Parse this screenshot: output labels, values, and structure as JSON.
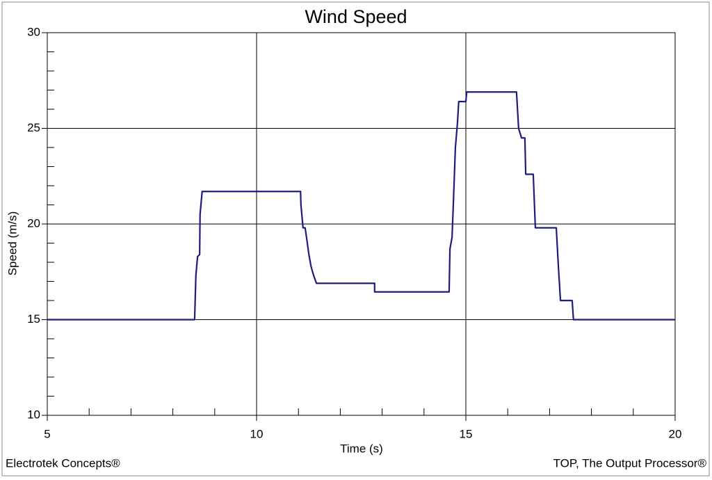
{
  "chart_data": {
    "type": "line",
    "title": "Wind Speed",
    "x_label": "Time (s)",
    "y_label": "Speed (m/s)",
    "footer_left": "Electrotek Concepts®",
    "footer_right": "TOP, The Output Processor®",
    "x": [
      5,
      8.52,
      8.55,
      8.59,
      8.64,
      8.65,
      8.7,
      11.05,
      11.06,
      11.11,
      11.16,
      11.2,
      11.25,
      11.3,
      11.35,
      11.43,
      12.82,
      12.82,
      14.6,
      14.62,
      14.67,
      14.7,
      14.75,
      14.8,
      14.83,
      15.0,
      15.02,
      16.21,
      16.26,
      16.33,
      16.41,
      16.43,
      16.61,
      16.66,
      17.16,
      17.21,
      17.26,
      17.54,
      17.57,
      20
    ],
    "series": [
      {
        "name": "Wind Speed",
        "color": "#1c1c80",
        "values": [
          15,
          15,
          17.3,
          18.3,
          18.4,
          20.5,
          21.7,
          21.7,
          21.0,
          19.8,
          19.8,
          19.2,
          18.4,
          17.8,
          17.4,
          16.9,
          16.9,
          16.45,
          16.45,
          18.7,
          19.3,
          21.0,
          24.0,
          25.3,
          26.4,
          26.4,
          26.9,
          26.9,
          25.0,
          24.5,
          24.5,
          22.6,
          22.6,
          19.8,
          19.8,
          17.8,
          16.0,
          16.0,
          15.0,
          15.0
        ]
      }
    ],
    "xlim": [
      5,
      20
    ],
    "xticks": [
      5,
      10,
      15,
      20
    ],
    "ylim": [
      10,
      30
    ],
    "yticks": [
      10,
      15,
      20,
      25,
      30
    ],
    "grid": true
  }
}
